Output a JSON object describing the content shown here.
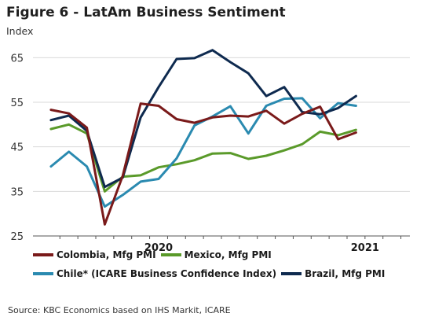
{
  "chart_data": {
    "type": "line",
    "title": "Figure 6 - LatAm Business Sentiment",
    "subtitle": "Index",
    "ylabel": "",
    "xlabel": "",
    "ylim": [
      25,
      67
    ],
    "yticks": [
      25,
      35,
      45,
      55,
      65
    ],
    "xlim": [
      0,
      21
    ],
    "x_tick_labels": [
      {
        "label": "2020",
        "x": 7
      },
      {
        "label": "2021",
        "x": 18.5
      }
    ],
    "grid": "horizontal",
    "legend_position": "bottom",
    "x": [
      1,
      2,
      3,
      4,
      5,
      6,
      7,
      8,
      9,
      10,
      11,
      12,
      13,
      14,
      15,
      16,
      17,
      18,
      19,
      20
    ],
    "series": [
      {
        "name": "Colombia, Mfg PMI",
        "color": "#7a1a1a",
        "values": [
          53.3,
          52.5,
          49.3,
          27.6,
          38.5,
          54.7,
          54.2,
          51.2,
          50.4,
          51.6,
          52,
          51.8,
          53.1,
          50.2,
          52.4,
          54,
          46.7,
          48.2,
          null,
          null
        ]
      },
      {
        "name": "Mexico, Mfg PMI",
        "color": "#5a9a2a",
        "values": [
          49,
          50,
          48,
          35,
          38.3,
          38.6,
          40.4,
          41.1,
          42,
          43.5,
          43.6,
          42.3,
          43,
          44.2,
          45.6,
          48.4,
          47.6,
          48.8,
          null,
          null
        ]
      },
      {
        "name": "Chile* (ICARE Business Confidence Index)",
        "color": "#2a8ab0",
        "values": [
          40.6,
          43.9,
          40.6,
          31.6,
          34.2,
          37.2,
          37.8,
          42.4,
          49.8,
          51.8,
          54.1,
          48,
          54.2,
          55.8,
          55.9,
          51.4,
          54.8,
          54.2,
          null,
          null
        ]
      },
      {
        "name": "Brazil, Mfg PMI",
        "color": "#0e2a4f",
        "values": [
          51,
          52,
          48.6,
          36,
          38.1,
          51.6,
          58.4,
          64.7,
          64.9,
          66.7,
          64,
          61.5,
          56.4,
          58.4,
          52.8,
          52.3,
          53.7,
          56.4,
          null,
          null
        ]
      }
    ]
  },
  "source": "Source: KBC Economics based on IHS Markit, ICARE"
}
